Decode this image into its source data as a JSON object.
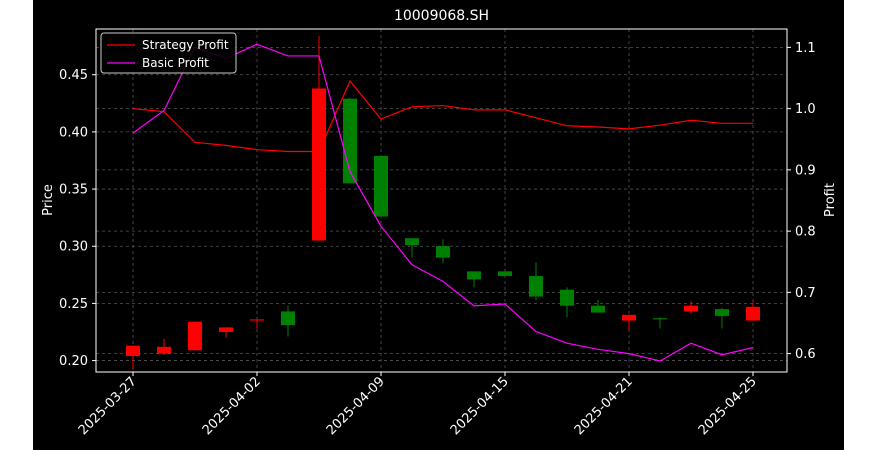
{
  "chart_data": {
    "type": "candlestick",
    "title": "10009068.SH",
    "ylabel_left": "Price",
    "ylabel_right": "Profit",
    "xlabel": "",
    "ylim_left": [
      0.19,
      0.49
    ],
    "ylim_right": [
      0.57,
      1.13
    ],
    "yticks_left": [
      "0.20",
      "0.25",
      "0.30",
      "0.35",
      "0.40",
      "0.45"
    ],
    "yticks_right": [
      "0.6",
      "0.7",
      "0.8",
      "0.9",
      "1.0",
      "1.1"
    ],
    "xticks": [
      "2025-03-27",
      "2025-04-02",
      "2025-04-09",
      "2025-04-15",
      "2025-04-21",
      "2025-04-25"
    ],
    "xtick_index": [
      0,
      4,
      8,
      12,
      16,
      20
    ],
    "grid": true,
    "legend_position": "top-left",
    "colors": {
      "up": "#ff0000",
      "down": "#008000",
      "strategy": "#ff0000",
      "basic": "#ff00ff",
      "grid": "#555555"
    },
    "candles": [
      {
        "open": 0.204,
        "close": 0.213,
        "high": 0.213,
        "low": 0.192
      },
      {
        "open": 0.206,
        "close": 0.212,
        "high": 0.219,
        "low": 0.205
      },
      {
        "open": 0.209,
        "close": 0.234,
        "high": 0.234,
        "low": 0.209
      },
      {
        "open": 0.225,
        "close": 0.229,
        "high": 0.229,
        "low": 0.22
      },
      {
        "open": 0.235,
        "close": 0.236,
        "high": 0.236,
        "low": 0.228
      },
      {
        "open": 0.243,
        "close": 0.231,
        "high": 0.248,
        "low": 0.221
      },
      {
        "open": 0.305,
        "close": 0.438,
        "high": 0.484,
        "low": 0.305
      },
      {
        "open": 0.429,
        "close": 0.355,
        "high": 0.43,
        "low": 0.355
      },
      {
        "open": 0.379,
        "close": 0.326,
        "high": 0.379,
        "low": 0.326
      },
      {
        "open": 0.307,
        "close": 0.301,
        "high": 0.307,
        "low": 0.29
      },
      {
        "open": 0.3,
        "close": 0.29,
        "high": 0.306,
        "low": 0.285
      },
      {
        "open": 0.278,
        "close": 0.271,
        "high": 0.278,
        "low": 0.264
      },
      {
        "open": 0.278,
        "close": 0.274,
        "high": 0.279,
        "low": 0.273
      },
      {
        "open": 0.274,
        "close": 0.256,
        "high": 0.286,
        "low": 0.253
      },
      {
        "open": 0.262,
        "close": 0.248,
        "high": 0.264,
        "low": 0.238
      },
      {
        "open": 0.248,
        "close": 0.242,
        "high": 0.253,
        "low": 0.242
      },
      {
        "open": 0.235,
        "close": 0.24,
        "high": 0.24,
        "low": 0.227
      },
      {
        "open": 0.237,
        "close": 0.236,
        "high": 0.238,
        "low": 0.228
      },
      {
        "open": 0.243,
        "close": 0.248,
        "high": 0.252,
        "low": 0.241
      },
      {
        "open": 0.245,
        "close": 0.239,
        "high": 0.246,
        "low": 0.228
      },
      {
        "open": 0.235,
        "close": 0.247,
        "high": 0.251,
        "low": 0.235
      }
    ],
    "series": [
      {
        "name": "Strategy Profit",
        "values": [
          1.0,
          0.995,
          0.945,
          0.94,
          0.933,
          0.93,
          0.93,
          1.045,
          0.983,
          1.003,
          1.005,
          0.998,
          0.998,
          0.985,
          0.972,
          0.97,
          0.967,
          0.973,
          0.981,
          0.976,
          0.976
        ]
      },
      {
        "name": "Basic Profit",
        "values": [
          0.96,
          0.997,
          1.1,
          1.082,
          1.105,
          1.086,
          1.086,
          0.897,
          0.808,
          0.745,
          0.718,
          0.678,
          0.681,
          0.636,
          0.617,
          0.607,
          0.6,
          0.588,
          0.617,
          0.598,
          0.61
        ]
      }
    ]
  }
}
